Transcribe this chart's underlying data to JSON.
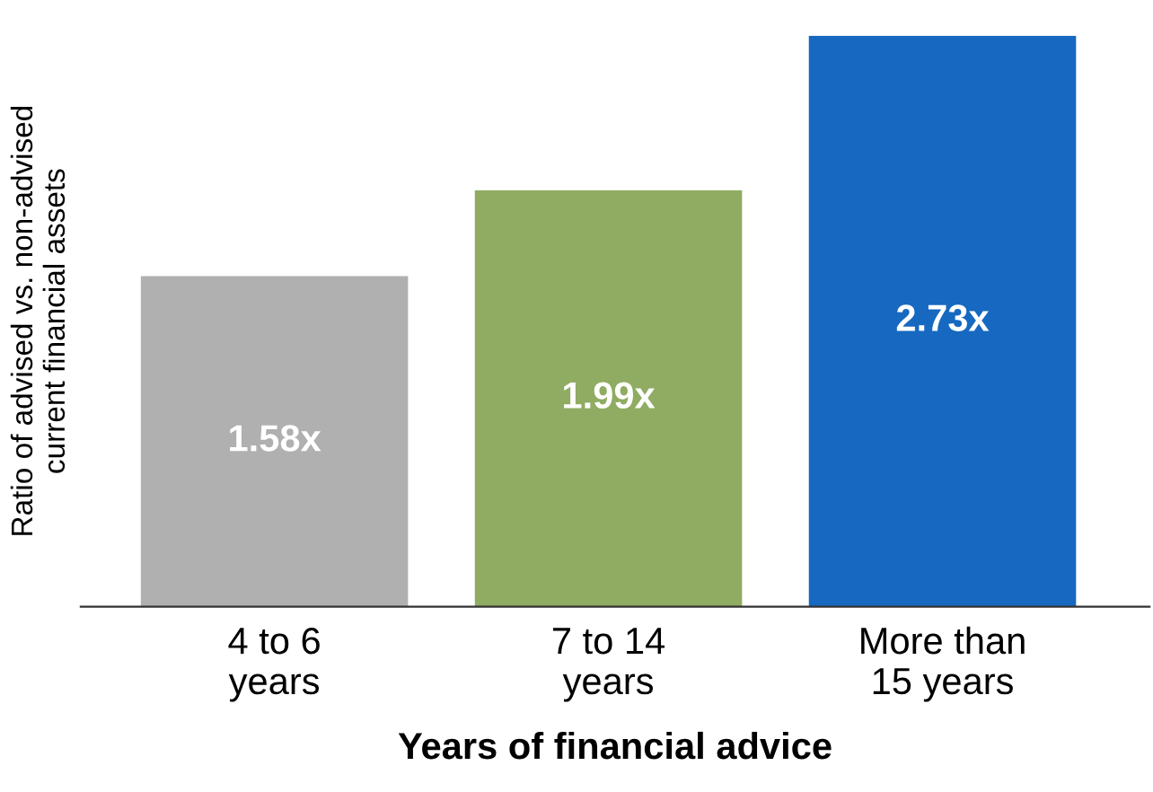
{
  "chart_data": {
    "type": "bar",
    "xlabel": "Years of financial advice",
    "ylabel": "Ratio of advised vs. non-advised\ncurrent financial assets",
    "categories": [
      "4 to 6\nyears",
      "7 to 14\nyears",
      "More than\n15 years"
    ],
    "values": [
      1.58,
      1.99,
      2.73
    ],
    "value_labels": [
      "1.58x",
      "1.99x",
      "2.73x"
    ],
    "colors": [
      "#b0b0b0",
      "#8fac62",
      "#1768c0"
    ],
    "ylim": [
      0,
      2.73
    ],
    "tick_labels": "x",
    "grid": false,
    "legend": false
  }
}
